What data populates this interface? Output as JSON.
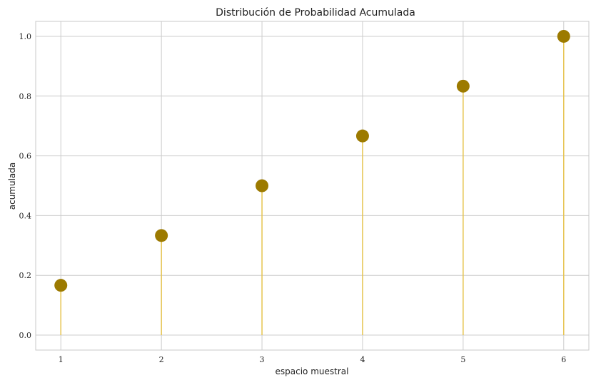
{
  "chart_data": {
    "type": "scatter",
    "subtype": "stem",
    "title": "Distribución de Probabilidad Acumulada",
    "xlabel": "espacio muestral",
    "ylabel": "acumulada",
    "x": [
      1,
      2,
      3,
      4,
      5,
      6
    ],
    "values": [
      0.1667,
      0.3333,
      0.5,
      0.6667,
      0.8333,
      1.0
    ],
    "x_ticks": [
      "1",
      "2",
      "3",
      "4",
      "5",
      "6"
    ],
    "y_ticks": [
      "0.0",
      "0.2",
      "0.4",
      "0.6",
      "0.8",
      "1.0"
    ],
    "xlim": [
      0.75,
      6.25
    ],
    "ylim": [
      -0.05,
      1.05
    ],
    "grid": true,
    "colors": {
      "marker": "#9c7a00",
      "stem": "#e6c44f",
      "grid": "#cccccc",
      "axes": "#c8c8c8"
    }
  }
}
